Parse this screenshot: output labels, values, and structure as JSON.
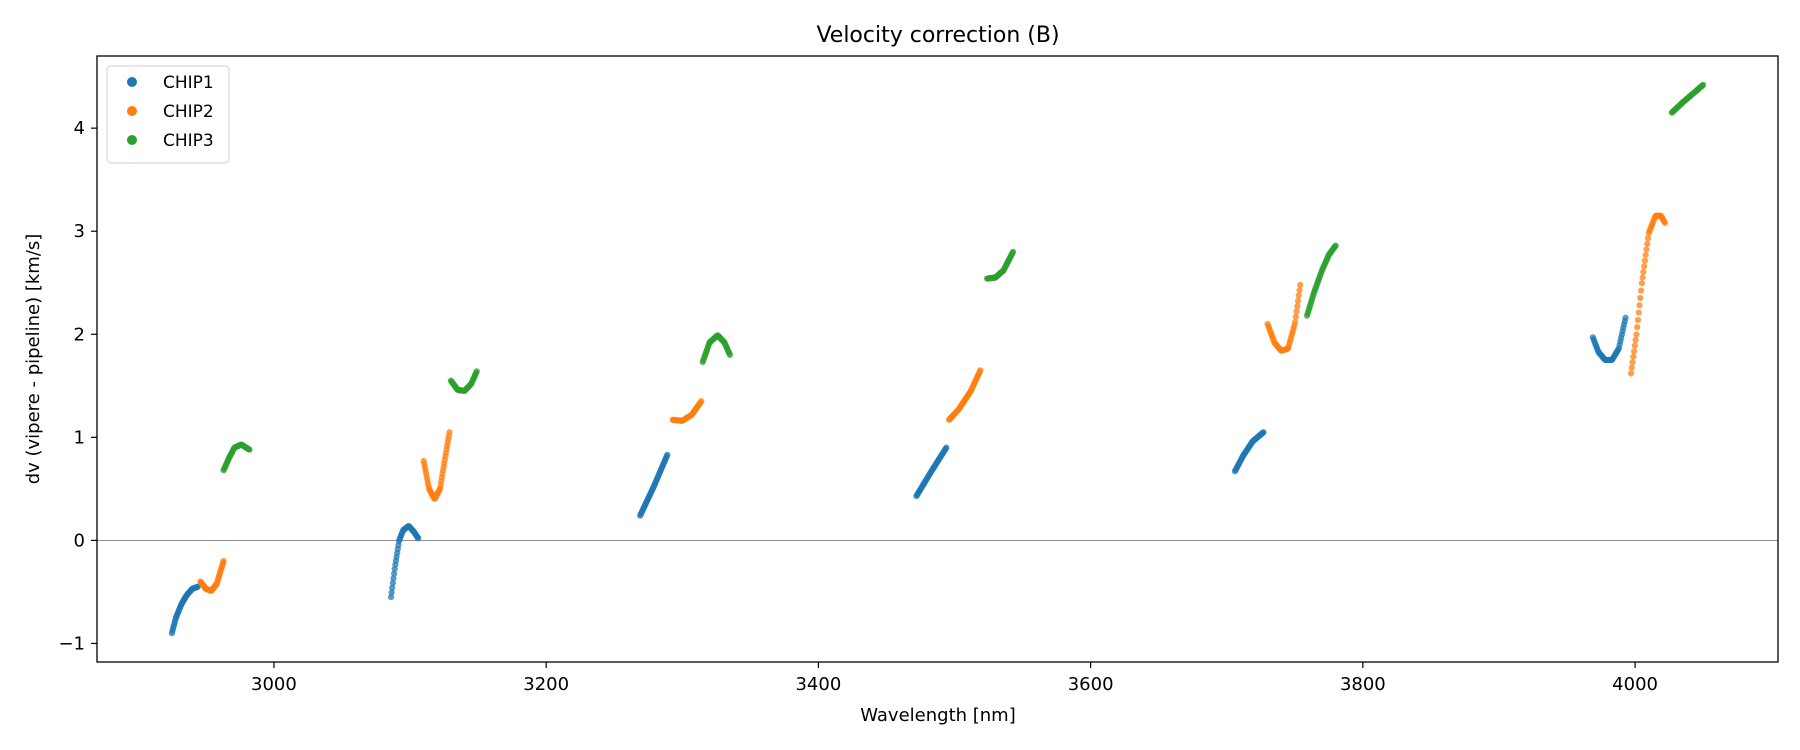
{
  "chart_data": {
    "type": "scatter",
    "title": "Velocity correction (B)",
    "xlabel": "Wavelength [nm]",
    "ylabel": "dv (vipere - pipeline) [km/s]",
    "xlim": [
      2870,
      4105
    ],
    "ylim": [
      -1.18,
      4.7
    ],
    "xticks": [
      3000,
      3200,
      3400,
      3600,
      3800,
      4000
    ],
    "yticks": [
      -1,
      0,
      1,
      2,
      3,
      4
    ],
    "ytick_labels": [
      "−1",
      "0",
      "1",
      "2",
      "3",
      "4"
    ],
    "hline": 0,
    "legend_position": "top-left",
    "series": [
      {
        "name": "CHIP1",
        "color": "#1f77b4",
        "segments": [
          [
            [
              2925,
              -0.9
            ],
            [
              2928,
              -0.75
            ],
            [
              2932,
              -0.62
            ],
            [
              2936,
              -0.53
            ],
            [
              2940,
              -0.47
            ],
            [
              2944,
              -0.45
            ]
          ],
          [
            [
              3086,
              -0.55
            ],
            [
              3089,
              -0.25
            ],
            [
              3092,
              0.0
            ],
            [
              3095,
              0.1
            ],
            [
              3099,
              0.14
            ],
            [
              3103,
              0.08
            ],
            [
              3106,
              0.02
            ]
          ],
          [
            [
              3269,
              0.24
            ],
            [
              3279,
              0.52
            ],
            [
              3289,
              0.83
            ]
          ],
          [
            [
              3472,
              0.43
            ],
            [
              3483,
              0.67
            ],
            [
              3494,
              0.9
            ]
          ],
          [
            [
              3706,
              0.67
            ],
            [
              3712,
              0.82
            ],
            [
              3719,
              0.96
            ],
            [
              3727,
              1.05
            ]
          ],
          [
            [
              3969,
              1.97
            ],
            [
              3973,
              1.83
            ],
            [
              3978,
              1.75
            ],
            [
              3983,
              1.75
            ],
            [
              3988,
              1.86
            ],
            [
              3993,
              2.16
            ]
          ]
        ]
      },
      {
        "name": "CHIP2",
        "color": "#ff7f0e",
        "segments": [
          [
            [
              2946,
              -0.4
            ],
            [
              2950,
              -0.47
            ],
            [
              2954,
              -0.49
            ],
            [
              2958,
              -0.42
            ],
            [
              2963,
              -0.2
            ]
          ],
          [
            [
              3110,
              0.77
            ],
            [
              3114,
              0.5
            ],
            [
              3118,
              0.4
            ],
            [
              3122,
              0.5
            ],
            [
              3126,
              0.82
            ],
            [
              3129,
              1.05
            ]
          ],
          [
            [
              3293,
              1.17
            ],
            [
              3300,
              1.16
            ],
            [
              3307,
              1.22
            ],
            [
              3314,
              1.35
            ]
          ],
          [
            [
              3496,
              1.17
            ],
            [
              3503,
              1.27
            ],
            [
              3512,
              1.45
            ],
            [
              3519,
              1.65
            ]
          ],
          [
            [
              3730,
              2.1
            ],
            [
              3735,
              1.92
            ],
            [
              3740,
              1.84
            ],
            [
              3745,
              1.86
            ],
            [
              3750,
              2.1
            ],
            [
              3754,
              2.48
            ]
          ],
          [
            [
              3997,
              1.62
            ],
            [
              4001,
              2.0
            ],
            [
              4005,
              2.5
            ],
            [
              4010,
              2.98
            ],
            [
              4015,
              3.15
            ],
            [
              4019,
              3.15
            ],
            [
              4022,
              3.08
            ]
          ]
        ]
      },
      {
        "name": "CHIP3",
        "color": "#2ca02c",
        "segments": [
          [
            [
              2963,
              0.68
            ],
            [
              2967,
              0.8
            ],
            [
              2971,
              0.9
            ],
            [
              2976,
              0.93
            ],
            [
              2982,
              0.88
            ]
          ],
          [
            [
              3130,
              1.55
            ],
            [
              3135,
              1.46
            ],
            [
              3140,
              1.45
            ],
            [
              3145,
              1.52
            ],
            [
              3149,
              1.64
            ]
          ],
          [
            [
              3315,
              1.73
            ],
            [
              3320,
              1.92
            ],
            [
              3326,
              1.99
            ],
            [
              3331,
              1.92
            ],
            [
              3335,
              1.8
            ]
          ],
          [
            [
              3524,
              2.54
            ],
            [
              3530,
              2.55
            ],
            [
              3536,
              2.62
            ],
            [
              3543,
              2.8
            ]
          ],
          [
            [
              3759,
              2.18
            ],
            [
              3764,
              2.4
            ],
            [
              3770,
              2.62
            ],
            [
              3775,
              2.77
            ],
            [
              3780,
              2.86
            ]
          ],
          [
            [
              4027,
              4.15
            ],
            [
              4035,
              4.25
            ],
            [
              4043,
              4.34
            ],
            [
              4050,
              4.42
            ]
          ]
        ]
      }
    ]
  }
}
